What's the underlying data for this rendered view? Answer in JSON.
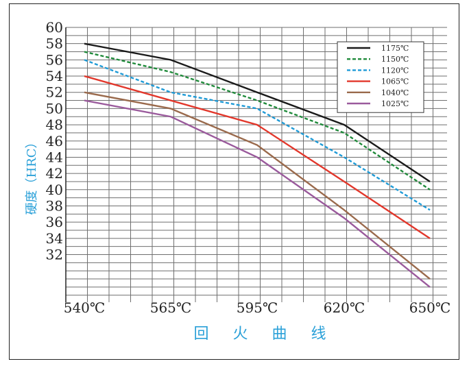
{
  "chart_data": {
    "type": "line",
    "title": "",
    "xlabel": "回 火 曲 线",
    "ylabel": "硬度（HRC）",
    "categories": [
      "540℃",
      "565℃",
      "595℃",
      "620℃",
      "650℃"
    ],
    "y_ticks": [
      "60",
      "58",
      "56",
      "54",
      "52",
      "50",
      "48",
      "46",
      "44",
      "42",
      "40",
      "38",
      "36",
      "34",
      "32"
    ],
    "ylim": [
      28,
      60
    ],
    "grid": true,
    "legend_position": "top-right",
    "series": [
      {
        "name": "1175℃",
        "color": "#1a1a1a",
        "dash": false,
        "values": [
          58,
          56,
          52,
          48,
          41
        ]
      },
      {
        "name": "1150℃",
        "color": "#1f8a3a",
        "dash": true,
        "values": [
          57,
          54.5,
          51,
          47,
          40
        ]
      },
      {
        "name": "1120℃",
        "color": "#1e9ad6",
        "dash": true,
        "values": [
          56,
          52,
          50,
          44,
          37.5
        ]
      },
      {
        "name": "1065℃",
        "color": "#e2372b",
        "dash": false,
        "values": [
          54,
          51,
          48,
          41,
          34
        ]
      },
      {
        "name": "1040℃",
        "color": "#9a6a4c",
        "dash": false,
        "values": [
          52,
          50,
          45.5,
          37.5,
          29
        ]
      },
      {
        "name": "1025℃",
        "color": "#9a5a9c",
        "dash": false,
        "values": [
          51,
          49,
          44,
          36.5,
          28
        ]
      }
    ]
  }
}
